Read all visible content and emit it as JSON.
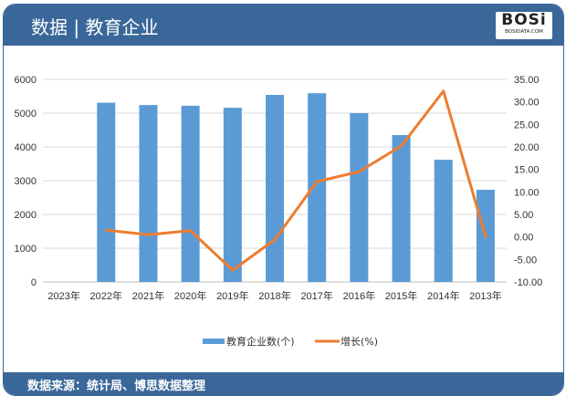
{
  "header": {
    "title": "数据 | 教育企业",
    "logo_text": "BOSi",
    "logo_sub": "BOSIDATA.COM"
  },
  "footer": {
    "source": "数据来源：统计局、博思数据整理"
  },
  "chart_data": {
    "type": "bar+line",
    "categories": [
      "2023年",
      "2022年",
      "2021年",
      "2020年",
      "2019年",
      "2018年",
      "2017年",
      "2016年",
      "2015年",
      "2014年",
      "2013年"
    ],
    "series": [
      {
        "name": "教育企业数(个)",
        "type": "bar",
        "axis": "left",
        "color": "#5b9bd5",
        "values": [
          null,
          5310,
          5240,
          5220,
          5160,
          5540,
          5590,
          5000,
          4350,
          3620,
          2730
        ]
      },
      {
        "name": "增长(%)",
        "type": "line",
        "axis": "right",
        "color": "#ed7d31",
        "values": [
          null,
          1.5,
          0.5,
          1.4,
          -7.4,
          -0.6,
          12.3,
          14.5,
          20.2,
          32.4,
          0.0
        ]
      }
    ],
    "left_axis": {
      "ylim": [
        0,
        6000
      ],
      "ticks": [
        "0",
        "1000",
        "2000",
        "3000",
        "4000",
        "5000",
        "6000"
      ]
    },
    "right_axis": {
      "ylim": [
        -10,
        35
      ],
      "ticks": [
        "-10.00",
        "-5.00",
        "0.00",
        "5.00",
        "10.00",
        "15.00",
        "20.00",
        "25.00",
        "30.00",
        "35.00"
      ]
    },
    "grid": true,
    "legend": "bottom"
  }
}
